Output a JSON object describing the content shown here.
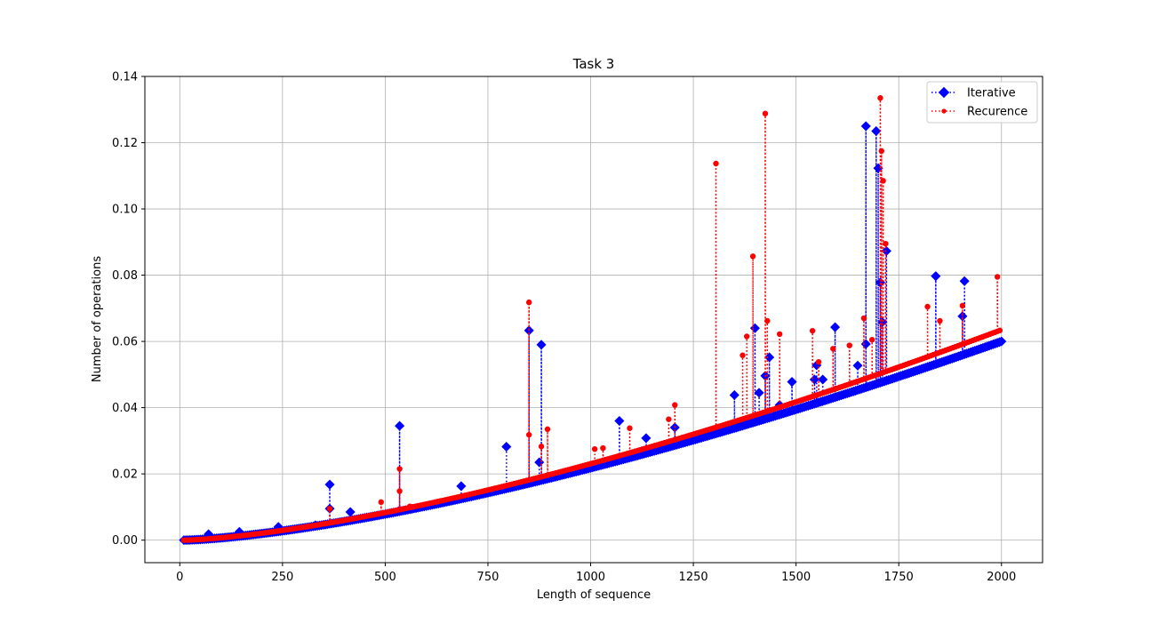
{
  "chart_data": {
    "type": "line",
    "title": "Task 3",
    "xlabel": "Length of sequence",
    "ylabel": "Number of operations",
    "xlim": [
      -85,
      2100
    ],
    "ylim": [
      -0.0068,
      0.14
    ],
    "xticks": [
      0,
      250,
      500,
      750,
      1000,
      1250,
      1500,
      1750,
      2000
    ],
    "xtick_labels": [
      "0",
      "250",
      "500",
      "750",
      "1000",
      "1250",
      "1500",
      "1750",
      "2000"
    ],
    "yticks": [
      0.0,
      0.02,
      0.04,
      0.06,
      0.08,
      0.1,
      0.12,
      0.14
    ],
    "ytick_labels": [
      "0.00",
      "0.02",
      "0.04",
      "0.06",
      "0.08",
      "0.10",
      "0.12",
      "0.14"
    ],
    "grid": true,
    "legend_position": "top-right",
    "series": [
      {
        "name": "Iterative",
        "color": "#0000ff",
        "marker": "diamond",
        "linestyle": "dotted",
        "baseline": {
          "x_start": 10,
          "x_end": 2000,
          "y_start": 0.0,
          "y_end": 0.06,
          "exponent": 1.45
        },
        "spikes": [
          [
            70,
            0.0018
          ],
          [
            145,
            0.0025
          ],
          [
            240,
            0.004
          ],
          [
            330,
            0.0045
          ],
          [
            365,
            0.0168
          ],
          [
            365,
            0.0095
          ],
          [
            415,
            0.0085
          ],
          [
            535,
            0.0345
          ],
          [
            535,
            0.009
          ],
          [
            685,
            0.0163
          ],
          [
            795,
            0.0282
          ],
          [
            850,
            0.0633
          ],
          [
            875,
            0.0235
          ],
          [
            880,
            0.059
          ],
          [
            1070,
            0.036
          ],
          [
            1115,
            0.026
          ],
          [
            1135,
            0.0308
          ],
          [
            1205,
            0.034
          ],
          [
            1350,
            0.0438
          ],
          [
            1400,
            0.064
          ],
          [
            1410,
            0.0445
          ],
          [
            1425,
            0.0496
          ],
          [
            1435,
            0.0552
          ],
          [
            1460,
            0.0408
          ],
          [
            1490,
            0.0478
          ],
          [
            1545,
            0.0485
          ],
          [
            1550,
            0.0528
          ],
          [
            1565,
            0.0485
          ],
          [
            1595,
            0.0643
          ],
          [
            1650,
            0.0527
          ],
          [
            1670,
            0.125
          ],
          [
            1670,
            0.0592
          ],
          [
            1695,
            0.1235
          ],
          [
            1700,
            0.1123
          ],
          [
            1705,
            0.0778
          ],
          [
            1710,
            0.0658
          ],
          [
            1720,
            0.0873
          ],
          [
            1840,
            0.0797
          ],
          [
            1905,
            0.0676
          ],
          [
            1910,
            0.0782
          ]
        ]
      },
      {
        "name": "Recurence",
        "color": "#ff0000",
        "marker": "point",
        "linestyle": "dotted",
        "baseline": {
          "x_start": 10,
          "x_end": 2000,
          "y_start": 0.0,
          "y_end": 0.0635,
          "exponent": 1.45
        },
        "spikes": [
          [
            365,
            0.0095
          ],
          [
            490,
            0.0115
          ],
          [
            535,
            0.0215
          ],
          [
            535,
            0.0148
          ],
          [
            560,
            0.0102
          ],
          [
            850,
            0.0718
          ],
          [
            850,
            0.0318
          ],
          [
            880,
            0.0283
          ],
          [
            895,
            0.0335
          ],
          [
            1010,
            0.0275
          ],
          [
            1030,
            0.0278
          ],
          [
            1095,
            0.0338
          ],
          [
            1190,
            0.0365
          ],
          [
            1205,
            0.0408
          ],
          [
            1305,
            0.1137
          ],
          [
            1370,
            0.0558
          ],
          [
            1380,
            0.0615
          ],
          [
            1395,
            0.0857
          ],
          [
            1425,
            0.1288
          ],
          [
            1430,
            0.0662
          ],
          [
            1460,
            0.0622
          ],
          [
            1540,
            0.0632
          ],
          [
            1555,
            0.0538
          ],
          [
            1590,
            0.0578
          ],
          [
            1630,
            0.0588
          ],
          [
            1665,
            0.067
          ],
          [
            1685,
            0.0605
          ],
          [
            1705,
            0.1335
          ],
          [
            1708,
            0.1175
          ],
          [
            1712,
            0.1085
          ],
          [
            1718,
            0.0895
          ],
          [
            1820,
            0.0705
          ],
          [
            1850,
            0.0662
          ],
          [
            1905,
            0.0708
          ],
          [
            1990,
            0.0795
          ]
        ]
      }
    ]
  }
}
